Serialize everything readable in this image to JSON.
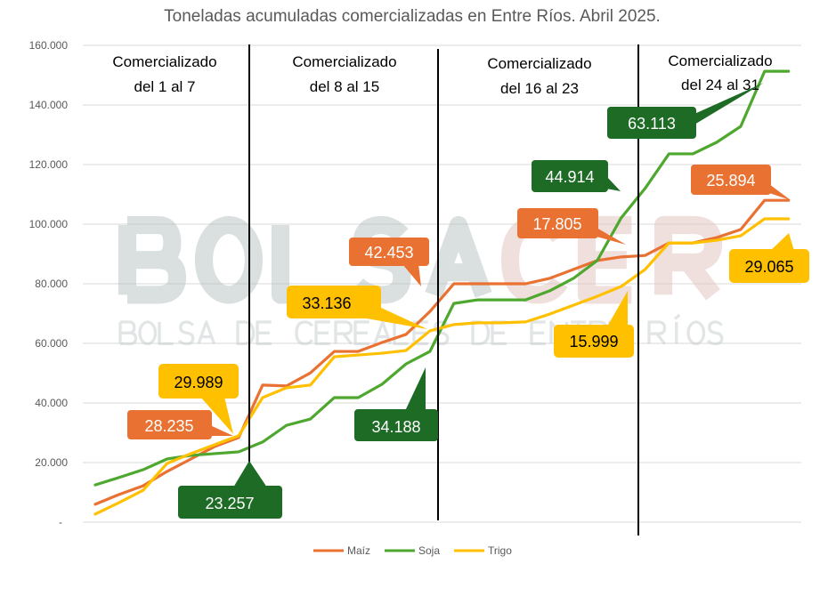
{
  "chart_data": {
    "type": "line",
    "title": "Toneladas acumuladas comercializadas en Entre Ríos. Abril 2025.",
    "xlabel": "",
    "ylabel": "",
    "ylim": [
      0,
      160000
    ],
    "grid": true,
    "legend_position": "bottom",
    "yticks": [
      {
        "value": 0,
        "label": "-"
      },
      {
        "value": 20000,
        "label": "20.000"
      },
      {
        "value": 40000,
        "label": "40.000"
      },
      {
        "value": 60000,
        "label": "60.000"
      },
      {
        "value": 80000,
        "label": "80.000"
      },
      {
        "value": 100000,
        "label": "100.000"
      },
      {
        "value": 120000,
        "label": "120.000"
      },
      {
        "value": 140000,
        "label": "140.000"
      },
      {
        "value": 160000,
        "label": "160.000"
      }
    ],
    "x": [
      1,
      2,
      3,
      4,
      5,
      6,
      7,
      8,
      9,
      10,
      11,
      12,
      13,
      14,
      15,
      16,
      17,
      18,
      19,
      20,
      21,
      22,
      23,
      24,
      25,
      26,
      27,
      28,
      29,
      30
    ],
    "series": [
      {
        "name": "Maíz",
        "color": "#E97132",
        "values": [
          6000,
          9300,
          12200,
          17000,
          21200,
          25400,
          28400,
          46000,
          45700,
          50100,
          57300,
          57300,
          60300,
          63000,
          70700,
          80000,
          80000,
          80000,
          80000,
          81800,
          84800,
          87800,
          89000,
          89500,
          93700,
          93700,
          95500,
          98200,
          108000,
          108000
        ]
      },
      {
        "name": "Soja",
        "color": "#4EA72E",
        "values": [
          12500,
          15000,
          17600,
          21200,
          22400,
          23000,
          23600,
          26900,
          32500,
          34600,
          41800,
          41800,
          46300,
          53100,
          57300,
          73400,
          74600,
          74600,
          74600,
          77600,
          81800,
          87800,
          102100,
          112000,
          123600,
          123600,
          127500,
          132800,
          151300,
          151300
        ]
      },
      {
        "name": "Trigo",
        "color": "#FFC000",
        "values": [
          2700,
          6600,
          10700,
          19700,
          23000,
          26000,
          29000,
          41800,
          45100,
          46000,
          55500,
          56100,
          56700,
          57600,
          64200,
          66300,
          66900,
          66900,
          67200,
          69800,
          72800,
          75800,
          79100,
          84800,
          93700,
          93700,
          94600,
          96100,
          101800,
          101800
        ]
      }
    ],
    "periods": [
      {
        "line1": "Comercializado",
        "line2": "del 1 al 7"
      },
      {
        "line1": "Comercializado",
        "line2": "del 8 al 15"
      },
      {
        "line1": "Comercializado",
        "line2": "del 16 al 23"
      },
      {
        "line1": "Comercializado",
        "line2": "del 24 al 31"
      }
    ],
    "annotations": {
      "maiz": [
        "28.235",
        "42.453",
        "17.805",
        "25.894"
      ],
      "soja": [
        "23.257",
        "34.188",
        "44.914",
        "63.113"
      ],
      "trigo": [
        "29.989",
        "33.136",
        "15.999",
        "29.065"
      ]
    }
  },
  "colors": {
    "callout_dark_green": "#1D6B25",
    "callout_orange": "#E97132",
    "callout_yellow": "#FFC000"
  },
  "watermark": {
    "logo": "BOLSACER",
    "subtitle": "BOLSA DE CEREALES DE ENTRE RÍOS"
  }
}
